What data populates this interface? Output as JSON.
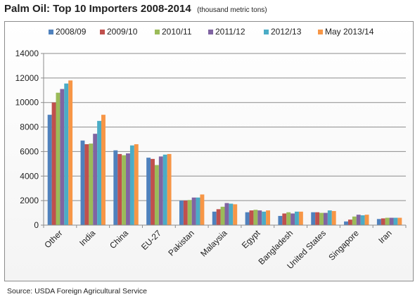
{
  "header": {
    "title": "Palm Oil: Top 10 Importers 2008-2014",
    "subtitle": "(thousand metric tons)"
  },
  "footer": {
    "source": "Source: USDA Foreign Agricultural Service"
  },
  "chart_data": {
    "type": "bar",
    "title": "Palm Oil: Top 10 Importers 2008-2014",
    "subtitle": "(thousand metric tons)",
    "xlabel": "",
    "ylabel": "",
    "ylim": [
      0,
      14000
    ],
    "yticks": [
      0,
      2000,
      4000,
      6000,
      8000,
      10000,
      12000,
      14000
    ],
    "grid": true,
    "legend_position": "top",
    "categories": [
      "Other",
      "India",
      "China",
      "EU-27",
      "Pakistan",
      "Malaysia",
      "Egypt",
      "Bangladesh",
      "United States",
      "Singapore",
      "Iran"
    ],
    "series": [
      {
        "name": "2008/09",
        "color": "#4f81bd",
        "values": [
          9000,
          6900,
          6100,
          5500,
          2000,
          1100,
          1050,
          750,
          1050,
          300,
          500
        ]
      },
      {
        "name": "2009/10",
        "color": "#c0504d",
        "values": [
          10000,
          6600,
          5800,
          5400,
          2000,
          1300,
          1200,
          950,
          1050,
          450,
          550
        ]
      },
      {
        "name": "2010/11",
        "color": "#9bbb59",
        "values": [
          10800,
          6650,
          5700,
          4900,
          2050,
          1500,
          1250,
          1050,
          1000,
          700,
          600
        ]
      },
      {
        "name": "2011/12",
        "color": "#8064a2",
        "values": [
          11100,
          7450,
          5850,
          5600,
          2250,
          1800,
          1200,
          950,
          1000,
          850,
          600
        ]
      },
      {
        "name": "2012/13",
        "color": "#4bacc6",
        "values": [
          11550,
          8500,
          6500,
          5750,
          2250,
          1750,
          1100,
          1100,
          1200,
          800,
          600
        ]
      },
      {
        "name": "May 2013/14",
        "color": "#f79646",
        "values": [
          11800,
          9000,
          6600,
          5800,
          2500,
          1700,
          1200,
          1100,
          1150,
          850,
          600
        ]
      }
    ]
  }
}
